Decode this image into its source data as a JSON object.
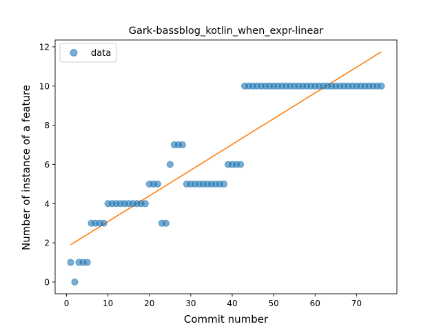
{
  "chart_data": {
    "type": "scatter",
    "title": "Gark-bassblog_kotlin_when_expr-linear",
    "xlabel": "Commit number",
    "ylabel": "Number of instance of a feature",
    "xlim": [
      -2.75,
      79.75
    ],
    "ylim": [
      -0.6,
      12.35
    ],
    "xticks": [
      0,
      10,
      20,
      30,
      40,
      50,
      60,
      70
    ],
    "yticks": [
      0,
      2,
      4,
      6,
      8,
      10,
      12
    ],
    "grid": false,
    "legend": {
      "placement": "top-left",
      "entries": [
        "data"
      ]
    },
    "series": [
      {
        "name": "data",
        "kind": "points",
        "color": "#1f77b4",
        "x": [
          1,
          2,
          3,
          4,
          5,
          6,
          7,
          8,
          9,
          10,
          11,
          12,
          13,
          14,
          15,
          16,
          17,
          18,
          19,
          20,
          21,
          22,
          23,
          24,
          25,
          26,
          27,
          28,
          29,
          30,
          31,
          32,
          33,
          34,
          35,
          36,
          37,
          38,
          39,
          40,
          41,
          42,
          43,
          44,
          45,
          46,
          47,
          48,
          49,
          50,
          51,
          52,
          53,
          54,
          55,
          56,
          57,
          58,
          59,
          60,
          61,
          62,
          63,
          64,
          65,
          66,
          67,
          68,
          69,
          70,
          71,
          72,
          73,
          74,
          75,
          76
        ],
        "y": [
          1,
          0,
          1,
          1,
          1,
          3,
          3,
          3,
          3,
          4,
          4,
          4,
          4,
          4,
          4,
          4,
          4,
          4,
          4,
          5,
          5,
          5,
          3,
          3,
          6,
          7,
          7,
          7,
          5,
          5,
          5,
          5,
          5,
          5,
          5,
          5,
          5,
          5,
          6,
          6,
          6,
          6,
          10,
          10,
          10,
          10,
          10,
          10,
          10,
          10,
          10,
          10,
          10,
          10,
          10,
          10,
          10,
          10,
          10,
          10,
          10,
          10,
          10,
          10,
          10,
          10,
          10,
          10,
          10,
          10,
          10,
          10,
          10,
          10,
          10,
          10
        ]
      },
      {
        "kind": "fit-line",
        "color": "#ff7f0e",
        "x": [
          1,
          76
        ],
        "y": [
          1.9,
          11.75
        ]
      }
    ]
  }
}
